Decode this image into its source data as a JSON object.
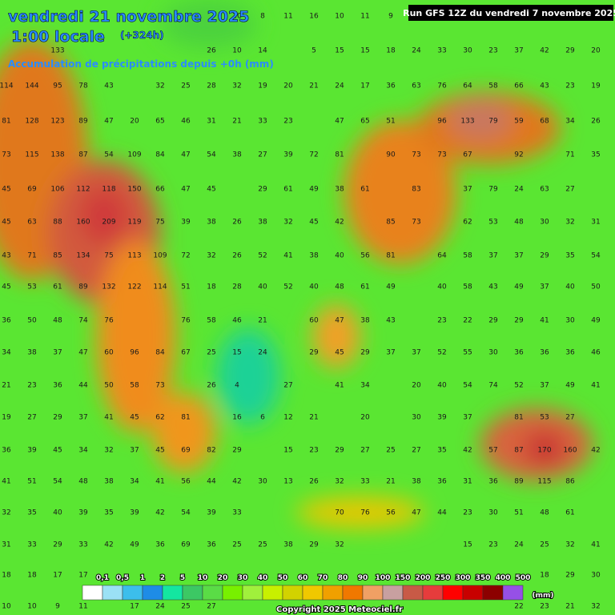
{
  "header": {
    "date": "vendredi 21 novembre 2025",
    "time": "1:00 locale",
    "lead": "(+324h)",
    "subtitle": "Accumulation de précipitations depuis +0h (mm)",
    "run": "Run GFS 12Z du vendredi 7 novembre 2025"
  },
  "grid": {
    "rows": [
      [
        null,
        null,
        null,
        null,
        null,
        null,
        null,
        null,
        null,
        20,
        8,
        11,
        16,
        10,
        11,
        9,
        null,
        null,
        null,
        null,
        null,
        null,
        null,
        null
      ],
      [
        null,
        null,
        133,
        null,
        null,
        null,
        null,
        null,
        26,
        10,
        14,
        null,
        5,
        15,
        15,
        18,
        24,
        33,
        30,
        23,
        37,
        42,
        29,
        20
      ],
      [
        114,
        144,
        95,
        78,
        43,
        null,
        32,
        25,
        28,
        32,
        19,
        20,
        21,
        24,
        17,
        36,
        63,
        76,
        64,
        58,
        66,
        43,
        23,
        19
      ],
      [
        81,
        128,
        123,
        89,
        47,
        20,
        65,
        46,
        31,
        21,
        33,
        23,
        null,
        47,
        65,
        51,
        null,
        96,
        133,
        79,
        59,
        68,
        34,
        26
      ],
      [
        73,
        115,
        138,
        87,
        54,
        109,
        84,
        47,
        54,
        38,
        27,
        39,
        72,
        81,
        null,
        90,
        73,
        73,
        67,
        null,
        92,
        null,
        71,
        35
      ],
      [
        45,
        69,
        106,
        112,
        118,
        150,
        66,
        47,
        45,
        null,
        29,
        61,
        49,
        38,
        61,
        null,
        83,
        null,
        37,
        79,
        24,
        63,
        27,
        null
      ],
      [
        45,
        63,
        88,
        160,
        209,
        119,
        75,
        39,
        38,
        26,
        38,
        32,
        45,
        42,
        null,
        85,
        73,
        null,
        62,
        53,
        48,
        30,
        32,
        31
      ],
      [
        43,
        71,
        85,
        134,
        75,
        113,
        109,
        72,
        32,
        26,
        52,
        41,
        38,
        40,
        56,
        81,
        null,
        64,
        58,
        37,
        37,
        29,
        35,
        54
      ],
      [
        45,
        53,
        61,
        89,
        132,
        122,
        114,
        51,
        18,
        28,
        40,
        52,
        40,
        48,
        61,
        49,
        null,
        40,
        58,
        43,
        49,
        37,
        40,
        50
      ],
      [
        36,
        50,
        48,
        74,
        76,
        null,
        null,
        76,
        58,
        46,
        21,
        null,
        60,
        47,
        38,
        43,
        null,
        23,
        22,
        29,
        29,
        41,
        30,
        49
      ],
      [
        34,
        38,
        37,
        47,
        60,
        96,
        84,
        67,
        25,
        15,
        24,
        null,
        29,
        45,
        29,
        37,
        37,
        52,
        55,
        30,
        36,
        36,
        36,
        46
      ],
      [
        21,
        23,
        36,
        44,
        50,
        58,
        73,
        null,
        26,
        4,
        null,
        27,
        null,
        41,
        34,
        null,
        20,
        40,
        54,
        74,
        52,
        37,
        49,
        41
      ],
      [
        19,
        27,
        29,
        37,
        41,
        45,
        62,
        81,
        null,
        16,
        6,
        12,
        21,
        null,
        20,
        null,
        30,
        39,
        37,
        null,
        81,
        53,
        27,
        null
      ],
      [
        36,
        39,
        45,
        34,
        32,
        37,
        45,
        69,
        82,
        29,
        null,
        15,
        23,
        29,
        27,
        25,
        27,
        35,
        42,
        57,
        87,
        170,
        160,
        42
      ],
      [
        41,
        51,
        54,
        48,
        38,
        34,
        41,
        56,
        44,
        42,
        30,
        13,
        26,
        32,
        33,
        21,
        38,
        36,
        31,
        36,
        89,
        115,
        86,
        null
      ],
      [
        32,
        35,
        40,
        39,
        35,
        39,
        42,
        54,
        39,
        33,
        null,
        null,
        null,
        70,
        76,
        56,
        47,
        44,
        23,
        30,
        51,
        48,
        61,
        null
      ],
      [
        31,
        33,
        29,
        33,
        42,
        49,
        36,
        69,
        36,
        25,
        25,
        38,
        29,
        32,
        null,
        null,
        null,
        null,
        15,
        23,
        24,
        25,
        32,
        41
      ],
      [
        18,
        18,
        17,
        17,
        null,
        null,
        null,
        null,
        null,
        null,
        null,
        null,
        null,
        null,
        null,
        null,
        null,
        null,
        null,
        null,
        null,
        18,
        29,
        30
      ],
      [
        10,
        10,
        9,
        11,
        null,
        17,
        24,
        25,
        27,
        null,
        null,
        null,
        null,
        null,
        null,
        null,
        null,
        null,
        null,
        null,
        22,
        23,
        21,
        32
      ]
    ]
  },
  "legend": {
    "labels": [
      "0,1",
      "0,5",
      "1",
      "2",
      "5",
      "10",
      "20",
      "30",
      "40",
      "50",
      "60",
      "70",
      "80",
      "90",
      "100",
      "150",
      "200",
      "250",
      "300",
      "350",
      "400",
      "500"
    ],
    "colors": [
      "#ffffff",
      "#9be1f5",
      "#3cbeeb",
      "#1e8ce6",
      "#14e6a0",
      "#3cc864",
      "#5adc46",
      "#78f000",
      "#a0f03c",
      "#c8f000",
      "#d2d200",
      "#f0c800",
      "#f0a000",
      "#f07800",
      "#f0a064",
      "#c8a0a0",
      "#c85a46",
      "#e63c3c",
      "#ff0000",
      "#c80000",
      "#8c0000",
      "#9650e6"
    ],
    "unit": "(mm)"
  },
  "footer": {
    "copyright": "Copyright 2025 Meteociel.fr"
  }
}
